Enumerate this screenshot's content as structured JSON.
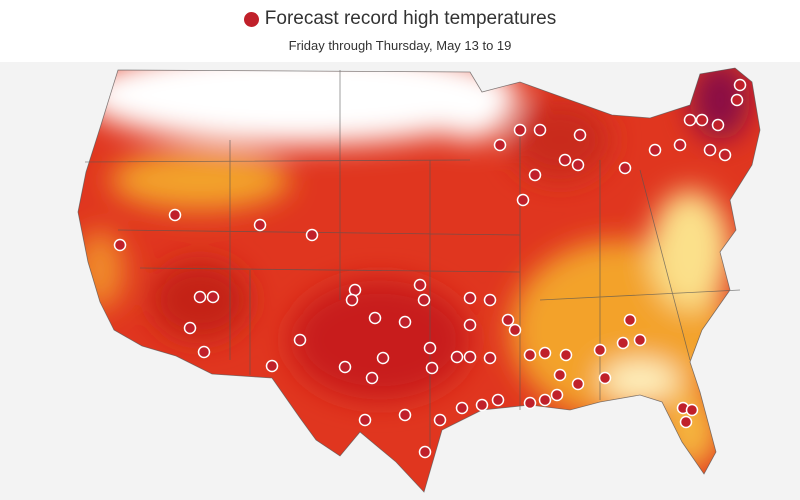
{
  "header": {
    "title": "Forecast record high temperatures",
    "subtitle": "Friday through Thursday, May 13 to 19"
  }
}
